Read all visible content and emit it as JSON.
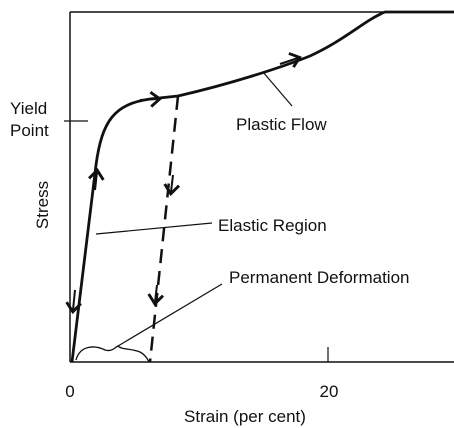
{
  "diagram": {
    "y_axis_label": "Stress",
    "x_axis_label": "Strain (per cent)",
    "x_tick_labels": [
      "0",
      "20"
    ],
    "annotations": {
      "yield_point": [
        "Yield",
        "Point"
      ],
      "plastic_flow": "Plastic Flow",
      "elastic_region": "Elastic Region",
      "permanent_deformation": "Permanent Deformation"
    }
  }
}
